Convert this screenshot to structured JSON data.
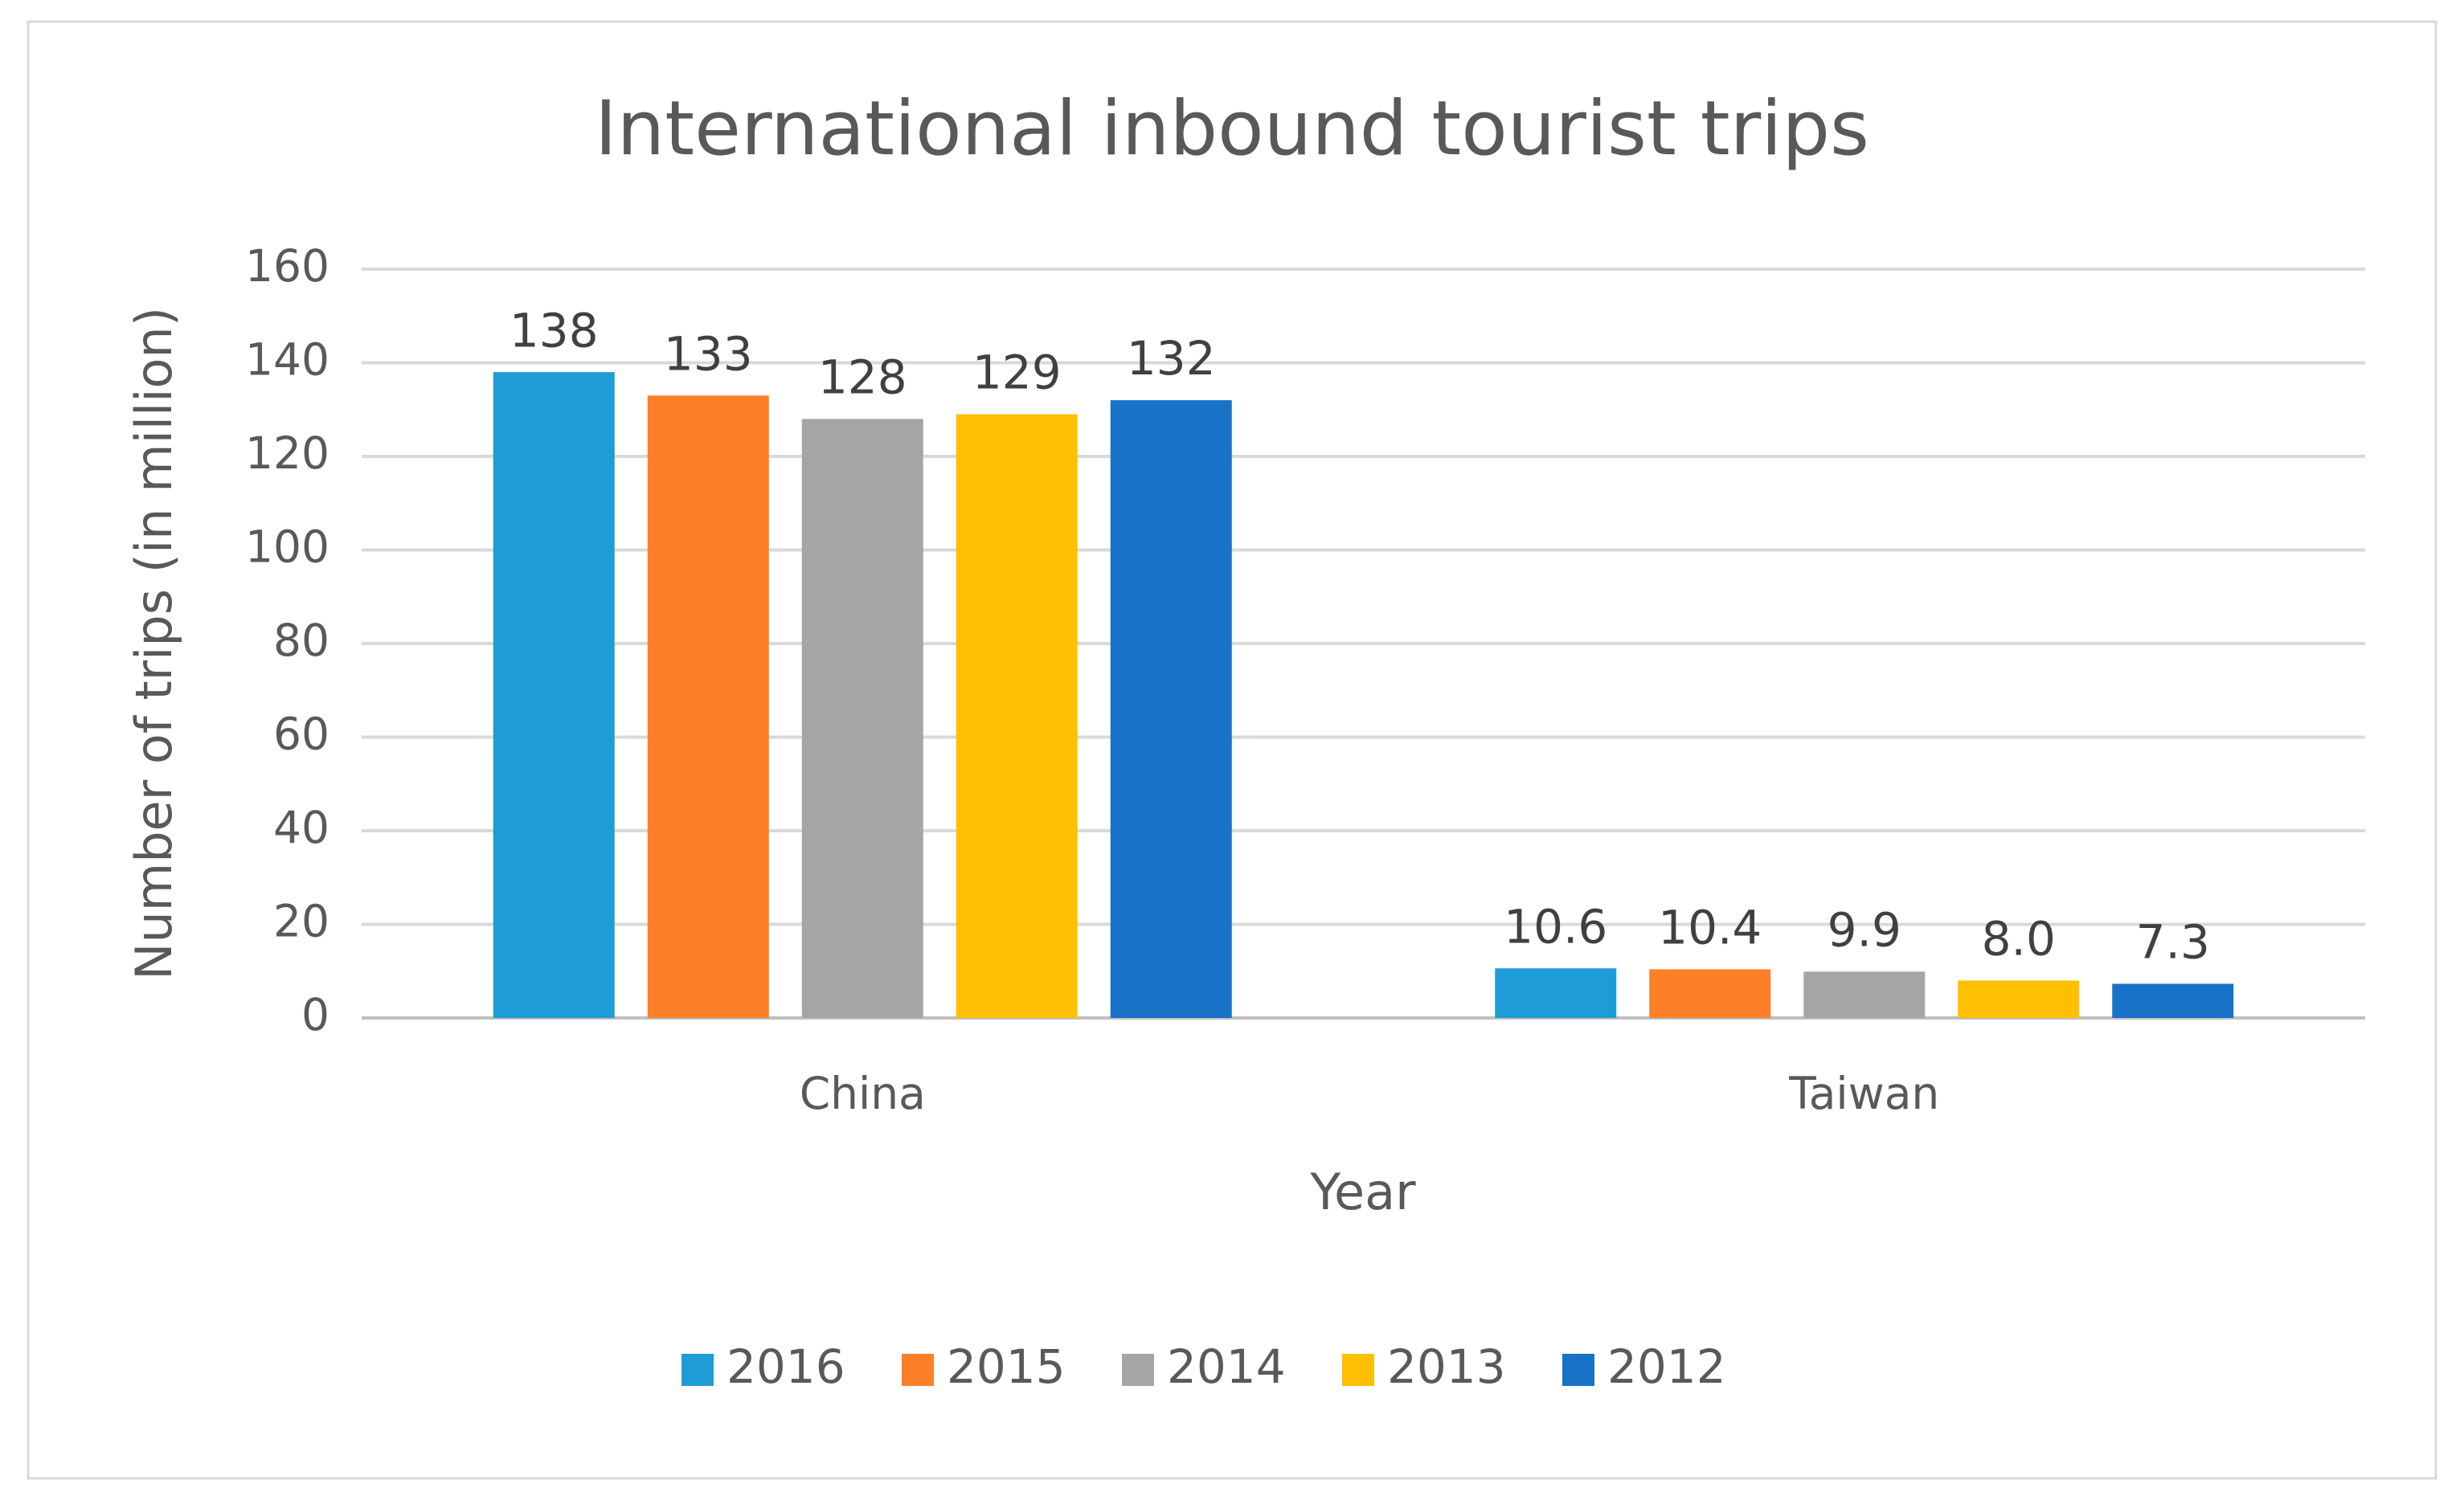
{
  "chart_data": {
    "type": "bar",
    "title": "International inbound tourist trips",
    "x_label": "Year",
    "y_label": "Number of trips (in million)",
    "categories": [
      "China",
      "Taiwan"
    ],
    "series": [
      {
        "name": "2016",
        "color": "#1f9bd7",
        "values": [
          138,
          10.6
        ],
        "value_labels": [
          "138",
          "10.6"
        ]
      },
      {
        "name": "2015",
        "color": "#fd7f27",
        "values": [
          133,
          10.4
        ],
        "value_labels": [
          "133",
          "10.4"
        ]
      },
      {
        "name": "2014",
        "color": "#a5a5a5",
        "values": [
          128,
          9.9
        ],
        "value_labels": [
          "128",
          "9.9"
        ]
      },
      {
        "name": "2013",
        "color": "#fec000",
        "values": [
          129,
          8.0
        ],
        "value_labels": [
          "129",
          "8.0"
        ]
      },
      {
        "name": "2012",
        "color": "#1872c8",
        "values": [
          132,
          7.3
        ],
        "value_labels": [
          "132",
          "7.3"
        ]
      }
    ],
    "ylim": [
      0,
      160
    ],
    "yticks": [
      0,
      20,
      40,
      60,
      80,
      100,
      120,
      140,
      160
    ],
    "grid": true,
    "legend": "bottom"
  }
}
